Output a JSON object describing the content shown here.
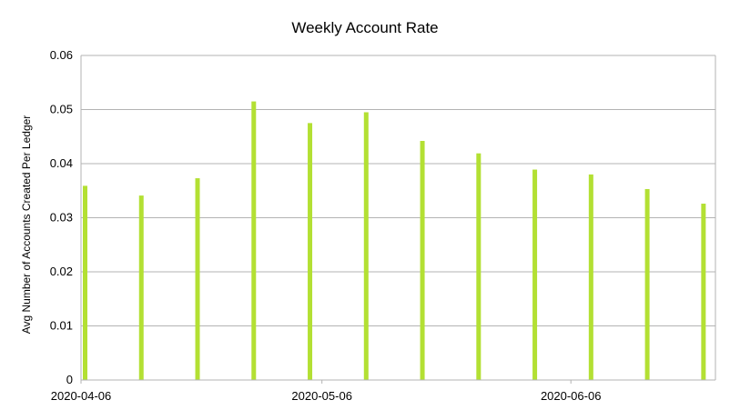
{
  "chart_data": {
    "type": "bar",
    "title": "Weekly Account Rate",
    "xlabel": "",
    "ylabel": "Avg Number of Accounts Created Per Ledger",
    "x_dates": [
      "2020-04-06",
      "2020-04-13",
      "2020-04-20",
      "2020-04-27",
      "2020-05-04",
      "2020-05-11",
      "2020-05-18",
      "2020-05-25",
      "2020-06-01",
      "2020-06-08",
      "2020-06-15",
      "2020-06-22"
    ],
    "values": [
      0.0359,
      0.0341,
      0.0373,
      0.0515,
      0.0475,
      0.0495,
      0.0442,
      0.0419,
      0.0389,
      0.038,
      0.0353,
      0.0326
    ],
    "ylim": [
      0,
      0.06
    ],
    "yticks": [
      "0",
      "0.01",
      "0.02",
      "0.03",
      "0.04",
      "0.05",
      "0.06"
    ],
    "xticks": [
      "2020-04-06",
      "2020-05-06",
      "2020-06-06"
    ],
    "grid": true,
    "bar_color": "#b3e033"
  }
}
